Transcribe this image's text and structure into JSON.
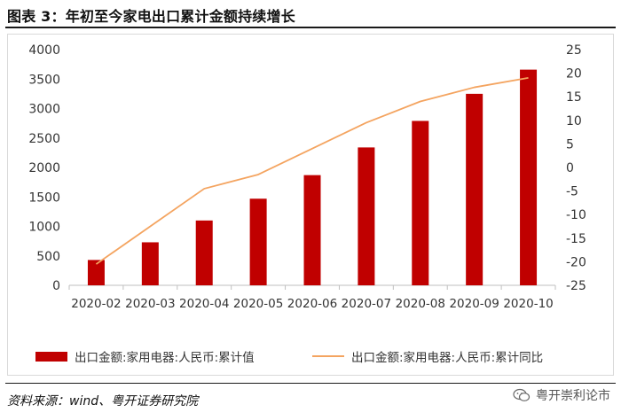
{
  "header": {
    "title": "图表 3：年初至今家电出口累计金额持续增长"
  },
  "chart_data": {
    "type": "bar+line",
    "title": "图表 3：年初至今家电出口累计金额持续增长",
    "categories": [
      "2020-02",
      "2020-03",
      "2020-04",
      "2020-05",
      "2020-06",
      "2020-07",
      "2020-08",
      "2020-09",
      "2020-10"
    ],
    "series": [
      {
        "name": "出口金额:家用电器:人民币:累计值",
        "type": "bar",
        "axis": "left",
        "color": "#c00000",
        "values": [
          430,
          730,
          1100,
          1470,
          1870,
          2340,
          2790,
          3250,
          3660
        ]
      },
      {
        "name": "出口金额:家用电器:人民币:累计同比",
        "type": "line",
        "axis": "right",
        "color": "#f4a460",
        "values": [
          -20.5,
          -12.5,
          -4.5,
          -1.5,
          4.0,
          9.5,
          14.0,
          17.0,
          19.0
        ]
      }
    ],
    "y_left": {
      "min": 0,
      "max": 4000,
      "ticks": [
        0,
        500,
        1000,
        1500,
        2000,
        2500,
        3000,
        3500,
        4000
      ]
    },
    "y_right": {
      "min": -25,
      "max": 25,
      "ticks": [
        -25,
        -20,
        -15,
        -10,
        -5,
        0,
        5,
        10,
        15,
        20,
        25
      ]
    },
    "grid": false,
    "legend_position": "bottom"
  },
  "footer": {
    "source": "资料来源：wind、粤开证券研究院",
    "watermark": "粤开崇利论市"
  }
}
